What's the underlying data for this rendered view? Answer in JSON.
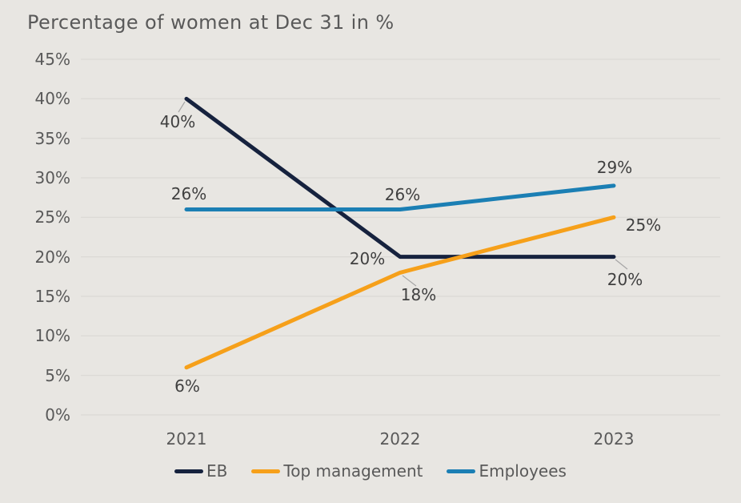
{
  "chart_data": {
    "type": "line",
    "title": "Percentage of women at Dec 31 in %",
    "categories": [
      "2021",
      "2022",
      "2023"
    ],
    "series": [
      {
        "name": "EB",
        "color": "#16223e",
        "values": [
          40,
          20,
          20
        ],
        "point_labels": [
          "40%",
          "20%",
          "20%"
        ]
      },
      {
        "name": "Top management",
        "color": "#f6a01a",
        "values": [
          6,
          18,
          25
        ],
        "point_labels": [
          "6%",
          "18%",
          "25%"
        ]
      },
      {
        "name": "Employees",
        "color": "#1b7fb4",
        "values": [
          26,
          26,
          29
        ],
        "point_labels": [
          "26%",
          "26%",
          "29%"
        ]
      }
    ],
    "y_axis": {
      "min": 0,
      "max": 45,
      "step": 5,
      "tick_labels": [
        "0%",
        "5%",
        "10%",
        "15%",
        "20%",
        "25%",
        "30%",
        "35%",
        "40%",
        "45%"
      ]
    },
    "xlabel": "",
    "ylabel": "",
    "grid": true,
    "legend_position": "bottom"
  },
  "colors": {
    "background": "#e8e6e2",
    "gridline": "#dcdad6",
    "title_text": "#595959",
    "axis_text": "#595959",
    "data_label_text": "#404040",
    "leader_line": "#a6a6a6"
  }
}
